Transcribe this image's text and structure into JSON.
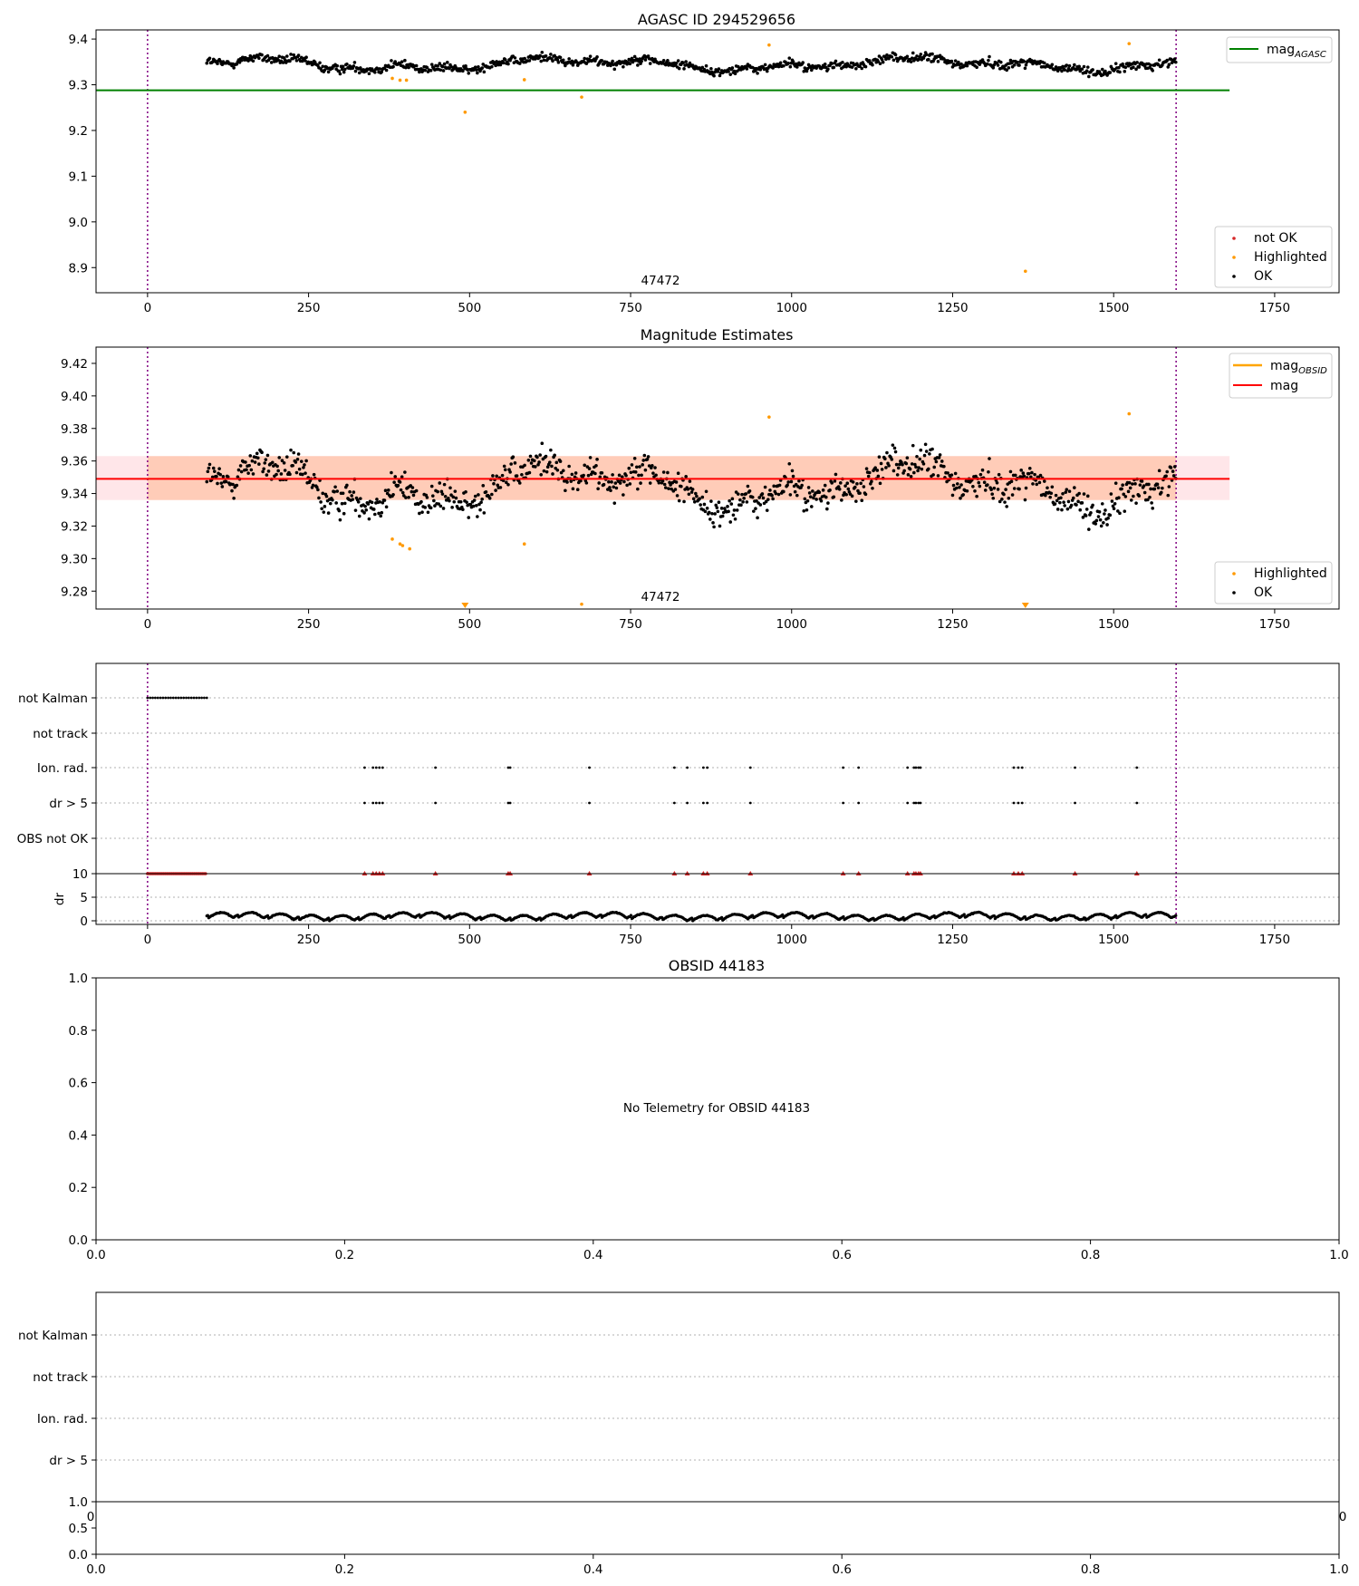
{
  "colors": {
    "ok": "#000000",
    "not_ok": "#d62728",
    "highlighted": "#ff9900",
    "mag_agasc": "#008000",
    "mag": "#ff0000",
    "mag_obsid": "#ffa500",
    "band_outer": "#ffb6c1",
    "band_inner": "#ffa66e",
    "obs_bounds": "#800080",
    "grid": "#b0b0b0"
  },
  "chart_data": [
    {
      "type": "scatter",
      "title": "AGASC ID 294529656",
      "xlim": [
        -80,
        1850
      ],
      "ylim": [
        8.845,
        9.42
      ],
      "xticks": [
        0,
        250,
        500,
        750,
        1000,
        1250,
        1500,
        1750
      ],
      "yticks": [
        8.9,
        9.0,
        9.1,
        9.2,
        9.3,
        9.4
      ],
      "xtick_labels": [
        "0",
        "250",
        "500",
        "750",
        "1000",
        "1250",
        "1500",
        "1750"
      ],
      "ytick_labels": [
        "8.9",
        "9.0",
        "9.1",
        "9.2",
        "9.3",
        "9.4"
      ],
      "obs_bounds": [
        0,
        1597
      ],
      "obsid_label": "47472",
      "obsid_label_x": 797,
      "hlines": [
        {
          "name": "mag_AGASC",
          "y": 9.288,
          "x": [
            -80,
            1680
          ]
        }
      ],
      "ok_trend": {
        "x_range": [
          92,
          1597
        ],
        "base": 9.345
      },
      "highlighted_points": [
        [
          380,
          9.314
        ],
        [
          392,
          9.31
        ],
        [
          402,
          9.31
        ],
        [
          493,
          9.24
        ],
        [
          585,
          9.311
        ],
        [
          674,
          9.273
        ],
        [
          965,
          9.387
        ],
        [
          1363,
          8.892
        ],
        [
          1524,
          9.39
        ]
      ],
      "legend_upper": {
        "location": "upper-right",
        "entries": [
          {
            "label_main": "mag",
            "label_sub": "AGASC"
          }
        ]
      },
      "legend_lower": {
        "location": "lower-right",
        "entries": [
          "not OK",
          "Highlighted",
          "OK"
        ]
      }
    },
    {
      "type": "scatter",
      "title": "Magnitude Estimates",
      "xlim": [
        -80,
        1850
      ],
      "ylim": [
        9.269,
        9.43
      ],
      "xticks": [
        0,
        250,
        500,
        750,
        1000,
        1250,
        1500,
        1750
      ],
      "yticks": [
        9.28,
        9.3,
        9.32,
        9.34,
        9.36,
        9.38,
        9.4,
        9.42
      ],
      "xtick_labels": [
        "0",
        "250",
        "500",
        "750",
        "1000",
        "1250",
        "1500",
        "1750"
      ],
      "ytick_labels": [
        "9.28",
        "9.30",
        "9.32",
        "9.34",
        "9.36",
        "9.38",
        "9.40",
        "9.42"
      ],
      "obs_bounds": [
        0,
        1597
      ],
      "obsid_label": "47472",
      "obsid_label_x": 797,
      "mag": 9.349,
      "band_outer": {
        "y": [
          9.336,
          9.363
        ],
        "x": [
          -80,
          1680
        ]
      },
      "band_inner": {
        "y": [
          9.336,
          9.363
        ],
        "x": [
          0,
          1597
        ]
      },
      "highlighted_points": [
        [
          380,
          9.312
        ],
        [
          392,
          9.309
        ],
        [
          396,
          9.308
        ],
        [
          407,
          9.306
        ],
        [
          585,
          9.309
        ],
        [
          674,
          9.272
        ],
        [
          965,
          9.387
        ],
        [
          1524,
          9.389
        ]
      ],
      "highlighted_off_axis": [
        493,
        1363
      ],
      "legend_upper": {
        "location": "upper-right",
        "entries": [
          {
            "label_main": "mag",
            "label_sub": "OBSID"
          },
          {
            "label_main": "mag",
            "label_sub": ""
          }
        ]
      },
      "legend_lower": {
        "location": "lower-right",
        "entries": [
          "Highlighted",
          "OK"
        ]
      }
    },
    {
      "type": "scatter",
      "title": "",
      "xlim": [
        -80,
        1850
      ],
      "xticks": [
        0,
        250,
        500,
        750,
        1000,
        1250,
        1500,
        1750
      ],
      "xtick_labels": [
        "0",
        "250",
        "500",
        "750",
        "1000",
        "1250",
        "1500",
        "1750"
      ],
      "obs_bounds": [
        0,
        1597
      ],
      "flag_categories": [
        "not Kalman",
        "not track",
        "Ion. rad.",
        "dr > 5",
        "OBS not OK"
      ],
      "not_kalman_range": [
        0,
        92
      ],
      "event_x": [
        337,
        350,
        355,
        360,
        365,
        447,
        560,
        563,
        686,
        818,
        838,
        863,
        869,
        936,
        1080,
        1104,
        1180,
        1190,
        1193,
        1197,
        1200,
        1345,
        1352,
        1358,
        1440,
        1536
      ],
      "dr_ylabel": "dr",
      "dr_ylim": [
        0,
        10
      ],
      "dr_yticks": [
        0,
        5,
        10
      ],
      "dr_ytick_labels": [
        "0",
        "5",
        "10"
      ],
      "dr_trend": {
        "x_range": [
          92,
          1597
        ]
      }
    },
    {
      "type": "scatter",
      "title": "OBSID 44183",
      "xlim": [
        0,
        1
      ],
      "ylim": [
        0,
        1
      ],
      "xticks": [
        0,
        0.2,
        0.4,
        0.6,
        0.8,
        1.0
      ],
      "yticks": [
        0,
        0.2,
        0.4,
        0.6,
        0.8,
        1.0
      ],
      "xtick_labels": [
        "0.0",
        "0.2",
        "0.4",
        "0.6",
        "0.8",
        "1.0"
      ],
      "ytick_labels": [
        "0.0",
        "0.2",
        "0.4",
        "0.6",
        "0.8",
        "1.0"
      ],
      "annotation": "No Telemetry for OBSID 44183"
    },
    {
      "type": "scatter",
      "title": "",
      "flag_categories": [
        "not Kalman",
        "not track",
        "Ion. rad.",
        "dr > 5"
      ],
      "xlim": [
        0,
        1
      ],
      "xticks": [
        0,
        0.2,
        0.4,
        0.6,
        0.8,
        1.0
      ],
      "xtick_labels": [
        "0.0",
        "0.2",
        "0.4",
        "0.6",
        "0.8",
        "1.0"
      ],
      "overlap_top_left": "0",
      "overlap_top_right": "0",
      "dr_ylim": [
        0,
        1
      ],
      "dr_yticks": [
        0,
        0.5,
        1.0
      ],
      "dr_ytick_labels": [
        "0.0",
        "0.5",
        "1.0"
      ]
    }
  ]
}
